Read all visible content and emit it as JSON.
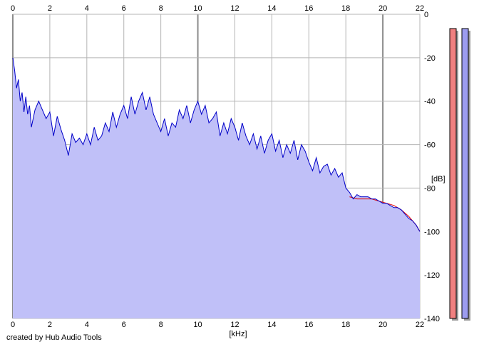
{
  "credit": "created by Hub Audio Tools",
  "colors": {
    "area_fill": "#c0c0f8",
    "series_blue": "#0000c8",
    "series_red": "#e00000",
    "grid": "#b4b4b4",
    "grid_major": "#8c8c8c",
    "meter_left": "#f08080",
    "meter_right": "#9c9cf0"
  },
  "chart_data": {
    "type": "area",
    "title": "",
    "xlabel": "[kHz]",
    "ylabel": "[dB]",
    "xlim": [
      0,
      22
    ],
    "ylim": [
      -140,
      0
    ],
    "x_ticks": [
      "0",
      "2",
      "4",
      "6",
      "8",
      "10",
      "12",
      "14",
      "16",
      "18",
      "20",
      "22"
    ],
    "y_ticks": [
      "0",
      "-20",
      "-40",
      "-60",
      "-80",
      "-100",
      "-120",
      "-140"
    ],
    "grid": true,
    "legend": "none",
    "series": [
      {
        "color": "#0000c8",
        "x": [
          0,
          0.1,
          0.2,
          0.3,
          0.4,
          0.5,
          0.6,
          0.7,
          0.8,
          0.9,
          1.0,
          1.2,
          1.4,
          1.6,
          1.8,
          2.0,
          2.2,
          2.4,
          2.6,
          2.8,
          3.0,
          3.2,
          3.4,
          3.6,
          3.8,
          4.0,
          4.2,
          4.4,
          4.6,
          4.8,
          5.0,
          5.2,
          5.4,
          5.6,
          5.8,
          6.0,
          6.2,
          6.4,
          6.6,
          6.8,
          7.0,
          7.2,
          7.4,
          7.6,
          7.8,
          8.0,
          8.2,
          8.4,
          8.6,
          8.8,
          9.0,
          9.2,
          9.4,
          9.6,
          9.8,
          10.0,
          10.2,
          10.4,
          10.6,
          10.8,
          11.0,
          11.2,
          11.4,
          11.6,
          11.8,
          12.0,
          12.2,
          12.4,
          12.6,
          12.8,
          13.0,
          13.2,
          13.4,
          13.6,
          13.8,
          14.0,
          14.2,
          14.4,
          14.6,
          14.8,
          15.0,
          15.2,
          15.4,
          15.6,
          15.8,
          16.0,
          16.2,
          16.4,
          16.6,
          16.8,
          17.0,
          17.2,
          17.4,
          17.6,
          17.8,
          18.0,
          18.2,
          18.4,
          18.6,
          18.8,
          19.0,
          19.2,
          19.4,
          19.6,
          19.8,
          20.0,
          20.2,
          20.4,
          20.6,
          20.8,
          21.0,
          21.2,
          21.4,
          21.6,
          21.8,
          22.0
        ],
        "y": [
          -20,
          -26,
          -34,
          -30,
          -40,
          -36,
          -45,
          -38,
          -46,
          -42,
          -52,
          -44,
          -40,
          -44,
          -48,
          -45,
          -56,
          -47,
          -53,
          -58,
          -65,
          -55,
          -59,
          -57,
          -60,
          -55,
          -60,
          -52,
          -58,
          -56,
          -50,
          -54,
          -45,
          -52,
          -46,
          -42,
          -48,
          -38,
          -46,
          -40,
          -36,
          -44,
          -38,
          -46,
          -50,
          -54,
          -48,
          -56,
          -50,
          -52,
          -44,
          -48,
          -42,
          -50,
          -44,
          -40,
          -46,
          -42,
          -50,
          -48,
          -45,
          -56,
          -50,
          -55,
          -48,
          -52,
          -58,
          -50,
          -56,
          -60,
          -55,
          -62,
          -56,
          -64,
          -58,
          -55,
          -63,
          -58,
          -66,
          -60,
          -64,
          -58,
          -67,
          -60,
          -63,
          -68,
          -72,
          -66,
          -73,
          -70,
          -69,
          -74,
          -71,
          -75,
          -73,
          -80,
          -82,
          -85,
          -83,
          -84,
          -84,
          -84,
          -85,
          -85,
          -86,
          -87,
          -87,
          -88,
          -89,
          -89,
          -90,
          -92,
          -94,
          -95,
          -97,
          -100
        ]
      },
      {
        "color": "#e00000",
        "x": [
          18.2,
          18.6,
          19.0,
          19.4,
          19.8,
          20.2,
          20.6,
          21.0,
          21.4,
          21.8,
          22.0
        ],
        "y": [
          -84,
          -85,
          -85,
          -85,
          -86,
          -87,
          -88,
          -90,
          -93,
          -97,
          -100
        ]
      }
    ]
  }
}
